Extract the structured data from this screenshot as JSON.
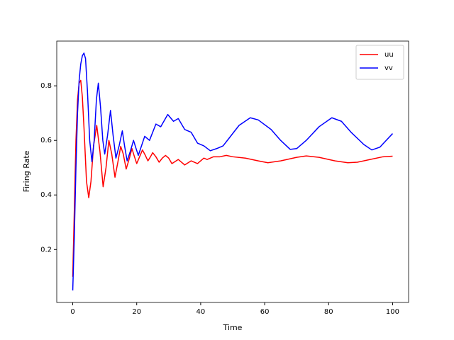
{
  "chart_data": {
    "type": "line",
    "xlabel": "Time",
    "ylabel": "Firing Rate",
    "xlim": [
      -5,
      105
    ],
    "xticks": [
      0,
      20,
      40,
      60,
      80,
      100
    ],
    "ylim": [
      0.006,
      0.964
    ],
    "yticks": [
      0.2,
      0.4,
      0.6,
      0.8
    ],
    "legend": "upper right",
    "series": [
      {
        "name": "uu",
        "color": "#ff0000",
        "x": [
          0,
          0.5,
          1,
          1.5,
          2,
          2.5,
          3,
          3.5,
          4.3,
          5,
          5.7,
          6.5,
          7.5,
          8.5,
          9.5,
          10.4,
          11.3,
          12.2,
          13.2,
          14.1,
          15,
          15.8,
          16.7,
          17.6,
          18.5,
          19.3,
          20,
          20.9,
          21.8,
          22.7,
          23.5,
          24.3,
          25,
          26,
          27,
          28,
          29,
          30,
          31,
          33,
          35,
          37,
          39,
          41,
          42,
          44,
          46,
          48,
          50,
          54,
          58,
          61,
          65,
          70,
          73,
          77,
          82,
          86,
          89,
          93,
          97,
          100
        ],
        "values": [
          0.1,
          0.35,
          0.6,
          0.75,
          0.81,
          0.82,
          0.76,
          0.65,
          0.45,
          0.39,
          0.45,
          0.58,
          0.655,
          0.56,
          0.43,
          0.5,
          0.6,
          0.55,
          0.465,
          0.52,
          0.578,
          0.55,
          0.495,
          0.53,
          0.57,
          0.54,
          0.515,
          0.54,
          0.565,
          0.545,
          0.525,
          0.54,
          0.555,
          0.54,
          0.52,
          0.535,
          0.545,
          0.535,
          0.515,
          0.53,
          0.51,
          0.525,
          0.515,
          0.535,
          0.53,
          0.54,
          0.54,
          0.545,
          0.54,
          0.535,
          0.525,
          0.518,
          0.525,
          0.538,
          0.543,
          0.538,
          0.525,
          0.518,
          0.52,
          0.53,
          0.54,
          0.542
        ]
      },
      {
        "name": "vv",
        "color": "#0000ff",
        "x": [
          0,
          0.5,
          1,
          1.5,
          2,
          2.5,
          3,
          3.5,
          4,
          4.6,
          5.3,
          6,
          6.7,
          7.4,
          8,
          8.7,
          9.4,
          10,
          10.9,
          11.8,
          12.6,
          13.5,
          14.5,
          15.5,
          16.2,
          17,
          18,
          19,
          19.8,
          20.5,
          21.5,
          22.5,
          24,
          26,
          27.5,
          29.7,
          31.5,
          33,
          35,
          37,
          39,
          41,
          43,
          45,
          47,
          49,
          52,
          55.5,
          58,
          62,
          65,
          68,
          70,
          73,
          77,
          81,
          84,
          87,
          91,
          93.5,
          96,
          100
        ],
        "values": [
          0.05,
          0.25,
          0.5,
          0.7,
          0.82,
          0.88,
          0.91,
          0.92,
          0.9,
          0.78,
          0.6,
          0.522,
          0.6,
          0.75,
          0.81,
          0.72,
          0.6,
          0.55,
          0.62,
          0.71,
          0.62,
          0.535,
          0.58,
          0.635,
          0.58,
          0.525,
          0.56,
          0.6,
          0.57,
          0.545,
          0.58,
          0.615,
          0.6,
          0.66,
          0.65,
          0.695,
          0.67,
          0.68,
          0.64,
          0.63,
          0.59,
          0.58,
          0.562,
          0.57,
          0.58,
          0.61,
          0.655,
          0.683,
          0.675,
          0.64,
          0.6,
          0.567,
          0.57,
          0.6,
          0.65,
          0.683,
          0.67,
          0.63,
          0.585,
          0.565,
          0.575,
          0.625
        ]
      }
    ]
  }
}
